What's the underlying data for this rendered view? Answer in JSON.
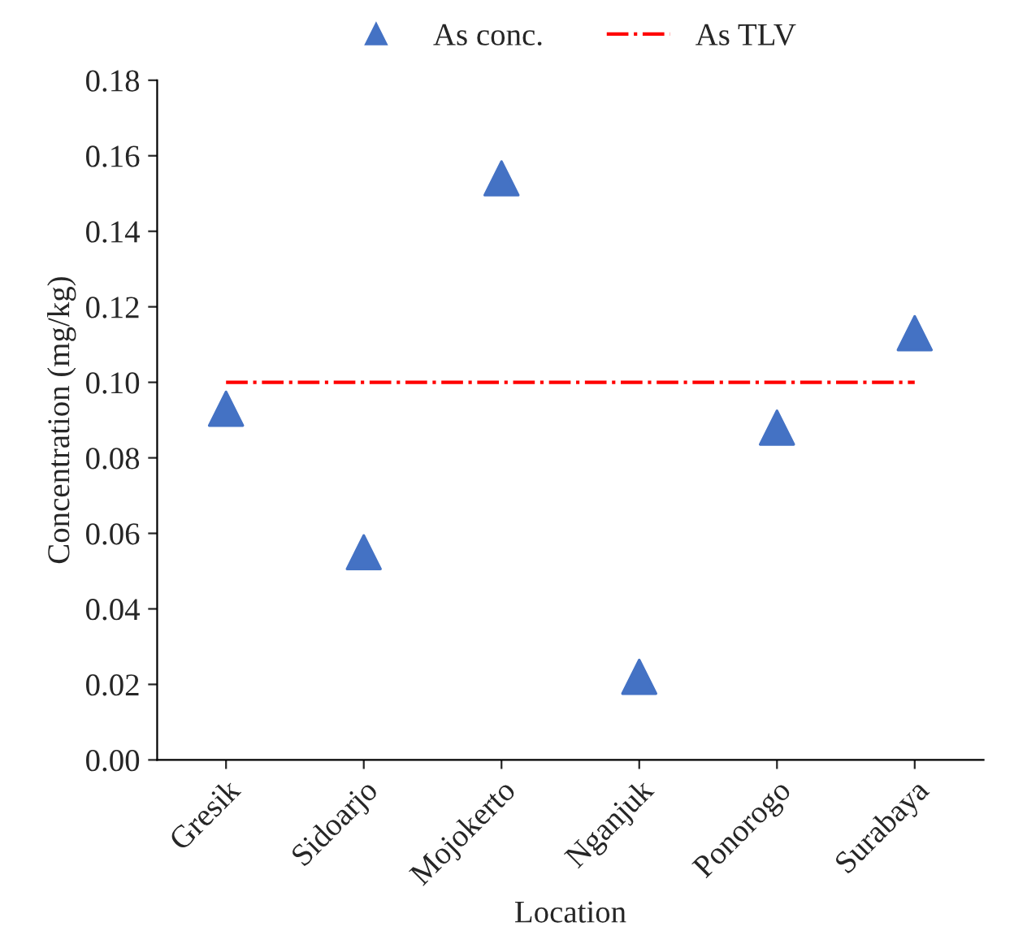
{
  "chart_data": {
    "type": "scatter",
    "xlabel": "Location",
    "ylabel": "Concentration (mg/kg)",
    "categories": [
      "Gresik",
      "Sidoarjo",
      "Mojokerto",
      "Nganjuk",
      "Ponorogo",
      "Surabaya"
    ],
    "series": [
      {
        "name": "As conc.",
        "color": "#4472c4",
        "marker": "triangle",
        "values": [
          0.093,
          0.055,
          0.154,
          0.022,
          0.088,
          0.113
        ]
      },
      {
        "name": "As TLV",
        "type": "line",
        "color": "#ff0000",
        "line_style": "dashdot",
        "marker": "none",
        "values": [
          0.1,
          0.1,
          0.1,
          0.1,
          0.1,
          0.1
        ]
      }
    ],
    "ylim": [
      0,
      0.18
    ],
    "yticks": [
      {
        "value": 0,
        "label": "0.00"
      },
      {
        "value": 0.02,
        "label": "0.02"
      },
      {
        "value": 0.04,
        "label": "0.04"
      },
      {
        "value": 0.06,
        "label": "0.06"
      },
      {
        "value": 0.08,
        "label": "0.08"
      },
      {
        "value": 0.1,
        "label": "0.10"
      },
      {
        "value": 0.12,
        "label": "0.12"
      },
      {
        "value": 0.14,
        "label": "0.14"
      },
      {
        "value": 0.16,
        "label": "0.16"
      },
      {
        "value": 0.18,
        "label": "0.18"
      }
    ],
    "grid": false,
    "legend": "top"
  }
}
